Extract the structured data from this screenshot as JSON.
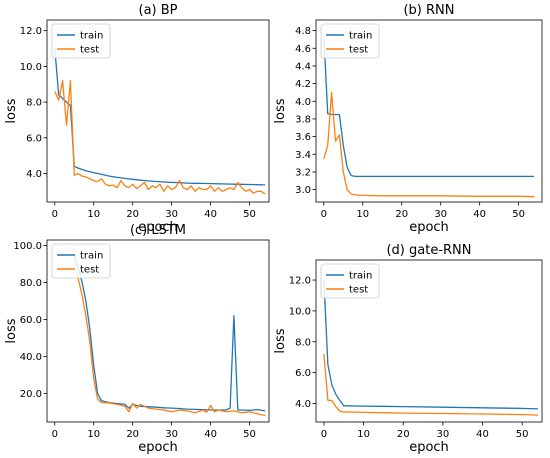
{
  "colors": {
    "train": "#1f77b4",
    "test": "#ff7f0e"
  },
  "chart_data": [
    {
      "type": "line",
      "title": "(a)  BP",
      "xlabel": "epoch",
      "ylabel": "loss",
      "xlim": [
        -2,
        55
      ],
      "ylim": [
        2.4,
        12.6
      ],
      "xticks": [
        0,
        10,
        20,
        30,
        40,
        50
      ],
      "yticks": [
        4.0,
        6.0,
        8.0,
        10.0,
        12.0
      ],
      "ytick_labels": [
        "4.0",
        "6.0",
        "8.0",
        "10.0",
        "12.0"
      ],
      "legend": {
        "placement": "top-left",
        "entries": [
          "train",
          "test"
        ]
      },
      "series": [
        {
          "name": "train",
          "x": [
            0,
            1,
            2,
            3,
            4,
            5,
            6,
            8,
            10,
            12,
            14,
            16,
            18,
            20,
            22,
            24,
            26,
            28,
            30,
            32,
            34,
            36,
            38,
            40,
            42,
            44,
            46,
            48,
            50,
            52,
            54
          ],
          "y": [
            11.0,
            8.4,
            8.2,
            8.0,
            7.8,
            4.4,
            4.3,
            4.15,
            4.05,
            3.95,
            3.85,
            3.78,
            3.72,
            3.67,
            3.62,
            3.58,
            3.55,
            3.52,
            3.5,
            3.48,
            3.46,
            3.45,
            3.44,
            3.43,
            3.42,
            3.41,
            3.4,
            3.39,
            3.38,
            3.37,
            3.36
          ]
        },
        {
          "name": "test",
          "x": [
            0,
            1,
            2,
            3,
            4,
            5,
            6,
            7,
            8,
            9,
            10,
            11,
            12,
            13,
            14,
            15,
            16,
            17,
            18,
            19,
            20,
            21,
            22,
            23,
            24,
            25,
            26,
            27,
            28,
            29,
            30,
            31,
            32,
            33,
            34,
            35,
            36,
            37,
            38,
            39,
            40,
            41,
            42,
            43,
            44,
            45,
            46,
            47,
            48,
            49,
            50,
            51,
            52,
            53,
            54
          ],
          "y": [
            8.6,
            8.1,
            9.2,
            6.7,
            9.2,
            3.9,
            4.0,
            3.85,
            3.8,
            3.7,
            3.6,
            3.55,
            3.7,
            3.4,
            3.3,
            3.35,
            3.2,
            3.6,
            3.3,
            3.2,
            3.4,
            3.15,
            3.3,
            3.5,
            3.1,
            3.3,
            3.2,
            3.4,
            3.0,
            3.3,
            3.1,
            3.2,
            3.6,
            3.2,
            3.1,
            3.3,
            3.0,
            3.2,
            3.1,
            3.1,
            3.3,
            3.0,
            3.2,
            3.0,
            3.1,
            3.2,
            3.1,
            3.5,
            3.2,
            3.0,
            3.1,
            2.9,
            3.0,
            3.0,
            2.85
          ]
        }
      ]
    },
    {
      "type": "line",
      "title": "(b)  RNN",
      "xlabel": "epoch",
      "ylabel": "loss",
      "xlim": [
        -2,
        56
      ],
      "ylim": [
        2.86,
        4.92
      ],
      "xticks": [
        0,
        10,
        20,
        30,
        40,
        50
      ],
      "yticks": [
        3.0,
        3.2,
        3.4,
        3.6,
        3.8,
        4.0,
        4.2,
        4.4,
        4.6,
        4.8
      ],
      "ytick_labels": [
        "3.0",
        "3.2",
        "3.4",
        "3.6",
        "3.8",
        "4.0",
        "4.2",
        "4.4",
        "4.6",
        "4.8"
      ],
      "legend": {
        "placement": "top-left",
        "entries": [
          "train",
          "test"
        ]
      },
      "series": [
        {
          "name": "train",
          "x": [
            0,
            1,
            2,
            3,
            4,
            5,
            6,
            7,
            8,
            10,
            15,
            20,
            30,
            40,
            50,
            54
          ],
          "y": [
            4.75,
            3.86,
            3.85,
            3.85,
            3.85,
            3.5,
            3.25,
            3.16,
            3.15,
            3.15,
            3.15,
            3.15,
            3.15,
            3.15,
            3.15,
            3.15
          ]
        },
        {
          "name": "test",
          "x": [
            0,
            1,
            2,
            3,
            4,
            5,
            6,
            7,
            8,
            10,
            15,
            20,
            30,
            40,
            50,
            54
          ],
          "y": [
            3.35,
            3.5,
            4.1,
            3.55,
            3.62,
            3.2,
            3.0,
            2.95,
            2.94,
            2.935,
            2.93,
            2.93,
            2.93,
            2.925,
            2.925,
            2.92
          ]
        }
      ]
    },
    {
      "type": "line",
      "title": "(c)  LSTM",
      "xlabel": "epoch",
      "ylabel": "loss",
      "xlim": [
        -2,
        55
      ],
      "ylim": [
        4.5,
        103
      ],
      "xticks": [
        0,
        10,
        20,
        30,
        40,
        50
      ],
      "yticks": [
        20.0,
        40.0,
        60.0,
        80.0,
        100.0
      ],
      "ytick_labels": [
        "20.0",
        "40.0",
        "60.0",
        "80.0",
        "100.0"
      ],
      "legend": {
        "placement": "top-left",
        "entries": [
          "train",
          "test"
        ]
      },
      "series": [
        {
          "name": "train",
          "x": [
            5,
            6,
            7,
            8,
            9,
            10,
            11,
            12,
            14,
            16,
            18,
            19,
            20,
            21,
            22,
            24,
            26,
            28,
            30,
            32,
            34,
            36,
            38,
            40,
            42,
            44,
            45,
            46,
            47,
            48,
            50,
            52,
            54
          ],
          "y": [
            95,
            88,
            80,
            70,
            55,
            35,
            20,
            16,
            15,
            14.5,
            14,
            12,
            14,
            13.5,
            13,
            12.8,
            12.5,
            12.2,
            12,
            11.8,
            11.5,
            11.3,
            11.2,
            11,
            11,
            11,
            12,
            62,
            11,
            11,
            10.8,
            11.2,
            10.5
          ]
        },
        {
          "name": "test",
          "x": [
            5,
            6,
            7,
            8,
            9,
            10,
            11,
            12,
            14,
            16,
            18,
            19,
            20,
            21,
            22,
            24,
            26,
            28,
            30,
            32,
            34,
            36,
            38,
            39,
            40,
            41,
            42,
            44,
            46,
            48,
            50,
            52,
            54
          ],
          "y": [
            92,
            82,
            73,
            62,
            48,
            28,
            17,
            15,
            14.8,
            14,
            13,
            10,
            14.5,
            12,
            14,
            12,
            11.5,
            11,
            10,
            11,
            10.5,
            9.5,
            11,
            9.8,
            13.5,
            10,
            11,
            10,
            10.5,
            9.5,
            10,
            9,
            8
          ]
        }
      ]
    },
    {
      "type": "line",
      "title": "(d)  gate-RNN",
      "xlabel": "epoch",
      "ylabel": "loss",
      "xlim": [
        -2,
        55
      ],
      "ylim": [
        2.8,
        13.3
      ],
      "xticks": [
        0,
        10,
        20,
        30,
        40,
        50
      ],
      "yticks": [
        4.0,
        6.0,
        8.0,
        10.0,
        12.0
      ],
      "ytick_labels": [
        "4.0",
        "6.0",
        "8.0",
        "10.0",
        "12.0"
      ],
      "legend": {
        "placement": "top-left",
        "entries": [
          "train",
          "test"
        ]
      },
      "series": [
        {
          "name": "train",
          "x": [
            0,
            1,
            2,
            3,
            4,
            5,
            6,
            8,
            10,
            20,
            30,
            40,
            50,
            54
          ],
          "y": [
            12.0,
            6.5,
            5.2,
            4.6,
            4.2,
            3.85,
            3.85,
            3.84,
            3.83,
            3.8,
            3.76,
            3.72,
            3.68,
            3.65
          ]
        },
        {
          "name": "test",
          "x": [
            0,
            1,
            2,
            3,
            4,
            5,
            6,
            8,
            10,
            20,
            30,
            40,
            50,
            54
          ],
          "y": [
            7.2,
            4.2,
            4.2,
            3.8,
            3.5,
            3.45,
            3.45,
            3.44,
            3.42,
            3.38,
            3.35,
            3.32,
            3.28,
            3.25
          ]
        }
      ]
    }
  ]
}
